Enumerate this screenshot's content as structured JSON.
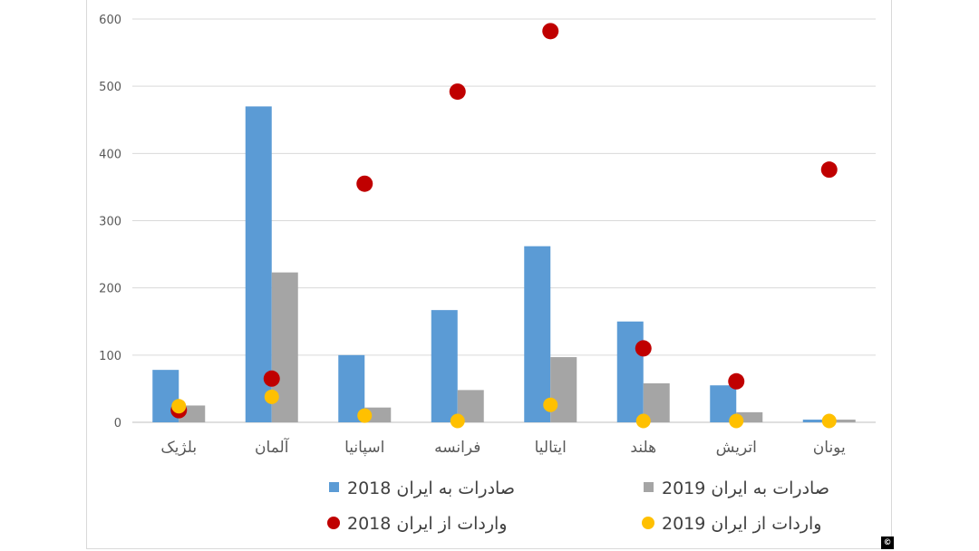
{
  "chart_data": {
    "type": "bar",
    "title": "",
    "xlabel": "",
    "ylabel": "",
    "ylim": [
      0,
      600
    ],
    "yticks": [
      0,
      100,
      200,
      300,
      400,
      500,
      600
    ],
    "ytick_labels": [
      "0",
      "100",
      "200",
      "300",
      "400",
      "500",
      "600"
    ],
    "categories": [
      "بلژیک",
      "آلمان",
      "اسپانیا",
      "فرانسه",
      "ایتالیا",
      "هلند",
      "اتریش",
      "یونان"
    ],
    "series": [
      {
        "name": "صادرات به ایران 2018",
        "kind": "bar",
        "color": "#5b9bd5",
        "values": [
          78,
          470,
          100,
          167,
          262,
          150,
          55,
          4
        ]
      },
      {
        "name": "صادرات به ایران 2019",
        "kind": "bar",
        "color": "#a5a5a5",
        "values": [
          25,
          223,
          22,
          48,
          97,
          58,
          15,
          4
        ]
      },
      {
        "name": "واردات از ایران 2018",
        "kind": "marker",
        "color": "#c00000",
        "values": [
          18,
          65,
          355,
          492,
          582,
          110,
          61,
          376
        ]
      },
      {
        "name": "واردات از ایران 2019",
        "kind": "marker",
        "color": "#ffc000",
        "values": [
          24,
          38,
          10,
          2,
          26,
          2,
          2,
          2
        ]
      }
    ],
    "legend_position": "bottom",
    "grid": true
  },
  "copyright": "©"
}
